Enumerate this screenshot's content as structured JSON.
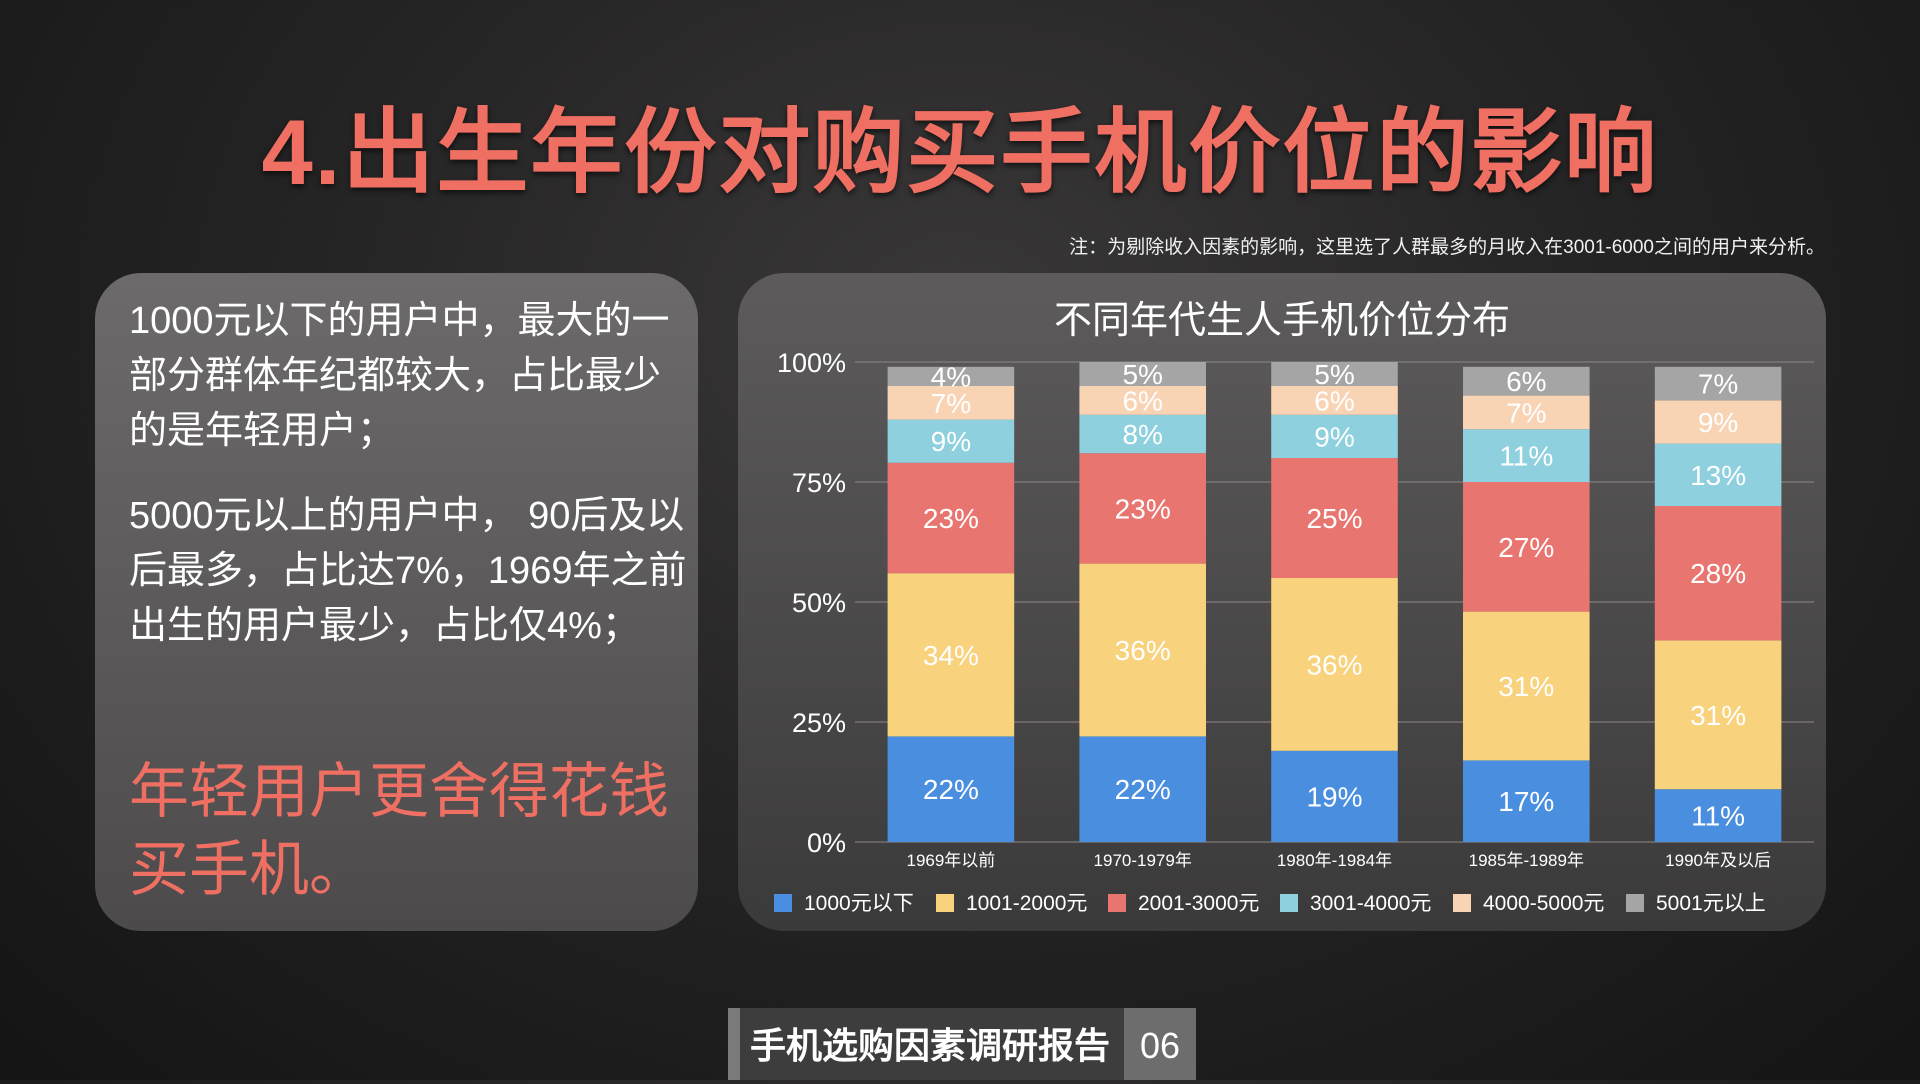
{
  "slide": {
    "title": "4.出生年份对购买手机价位的影响",
    "note": "注：为剔除收入因素的影响，这里选了人群最多的月收入在3001-6000之间的用户来分析。",
    "paragraphs": [
      "1000元以下的用户中，最大的一部分群体年纪都较大，占比最少的是年轻用户；",
      "5000元以上的用户中， 90后及以后最多，占比达7%，1969年之前出生的用户最少，占比仅4%；"
    ],
    "conclusion": "年轻用户更舍得花钱买手机。",
    "footer_label": "手机选购因素调研报告",
    "page_number": "06"
  },
  "chart_data": {
    "type": "bar",
    "stacked": true,
    "title": "不同年代生人手机价位分布",
    "categories": [
      "1969年以前",
      "1970-1979年",
      "1980年-1984年",
      "1985年-1989年",
      "1990年及以后"
    ],
    "series": [
      {
        "name": "1000元以下",
        "color": "#4a8ee0",
        "values": [
          22,
          22,
          19,
          17,
          11
        ],
        "labels": [
          "22%",
          "22%",
          "19%",
          "17%",
          "11%"
        ]
      },
      {
        "name": "1001-2000元",
        "color": "#f8d27c",
        "values": [
          34,
          36,
          36,
          31,
          31
        ],
        "labels": [
          "34%",
          "36%",
          "36%",
          "31%",
          "31%"
        ]
      },
      {
        "name": "2001-3000元",
        "color": "#e97570",
        "values": [
          23,
          23,
          25,
          27,
          28
        ],
        "labels": [
          "23%",
          "23%",
          "25%",
          "27%",
          "28%"
        ]
      },
      {
        "name": "3001-4000元",
        "color": "#8ed0dd",
        "values": [
          9,
          8,
          9,
          11,
          13
        ],
        "labels": [
          "9%",
          "8%",
          "9%",
          "11%",
          "13%"
        ]
      },
      {
        "name": "4000-5000元",
        "color": "#f9d4b4",
        "values": [
          7,
          6,
          6,
          7,
          9
        ],
        "labels": [
          "7%",
          "6%",
          "6%",
          "7%",
          "9%"
        ]
      },
      {
        "name": "5001元以上",
        "color": "#a5a5a5",
        "values": [
          4,
          5,
          5,
          6,
          7
        ],
        "labels": [
          "4%",
          "5%",
          "5%",
          "6%",
          "7%"
        ]
      }
    ],
    "ylim": [
      0,
      100
    ],
    "yticks": [
      "0%",
      "25%",
      "50%",
      "75%",
      "100%"
    ],
    "grid": true,
    "legend_position": "bottom"
  }
}
